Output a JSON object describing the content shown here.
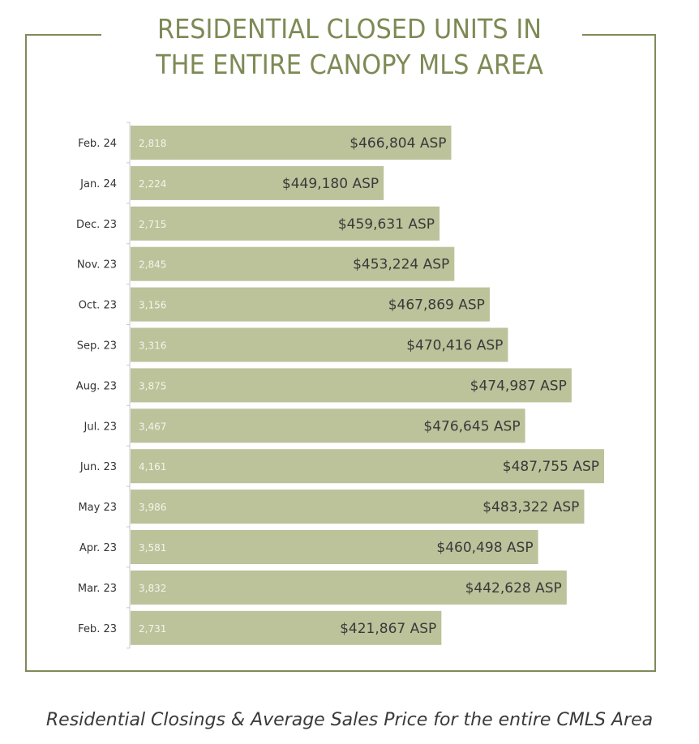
{
  "title": {
    "line1": "RESIDENTIAL CLOSED UNITS IN",
    "line2": "THE ENTIRE CANOPY MLS AREA"
  },
  "caption": "Residential Closings & Average Sales Price for the entire CMLS Area",
  "colors": {
    "accent": "#7d8a55",
    "bar": "#bcc29a",
    "bar_value_text": "#f4f5ea",
    "asp_text": "#3a3a3a",
    "category_text": "#333333"
  },
  "chart_data": {
    "type": "bar",
    "orientation": "horizontal",
    "title": "RESIDENTIAL CLOSED UNITS IN THE ENTIRE CANOPY MLS AREA",
    "xlabel": "",
    "ylabel": "",
    "grid": false,
    "legend": "none",
    "categories": [
      "Feb. 24",
      "Jan. 24",
      "Dec. 23",
      "Nov. 23",
      "Oct. 23",
      "Sep. 23",
      "Aug. 23",
      "Jul. 23",
      "Jun. 23",
      "May 23",
      "Apr. 23",
      "Mar. 23",
      "Feb. 23"
    ],
    "series": [
      {
        "name": "Closed Units",
        "values": [
          2818,
          2224,
          2715,
          2845,
          3156,
          3316,
          3875,
          3467,
          4161,
          3986,
          3581,
          3832,
          2731
        ],
        "labels": [
          "2,818",
          "2,224",
          "2,715",
          "2,845",
          "3,156",
          "3,316",
          "3,875",
          "3,467",
          "4,161",
          "3,986",
          "3,581",
          "3,832",
          "2,731"
        ]
      },
      {
        "name": "Average Sales Price",
        "values": [
          466804,
          449180,
          459631,
          453224,
          467869,
          470416,
          474987,
          476645,
          487755,
          483322,
          460498,
          442628,
          421867
        ],
        "labels": [
          "$466,804 ASP",
          "$449,180 ASP",
          "$459,631 ASP",
          "$453,224 ASP",
          "$467,869 ASP",
          "$470,416 ASP",
          "$474,987 ASP",
          "$476,645 ASP",
          "$487,755 ASP",
          "$483,322 ASP",
          "$460,498 ASP",
          "$442,628 ASP",
          "$421,867 ASP"
        ]
      }
    ],
    "xlim": [
      0,
      4161
    ]
  }
}
